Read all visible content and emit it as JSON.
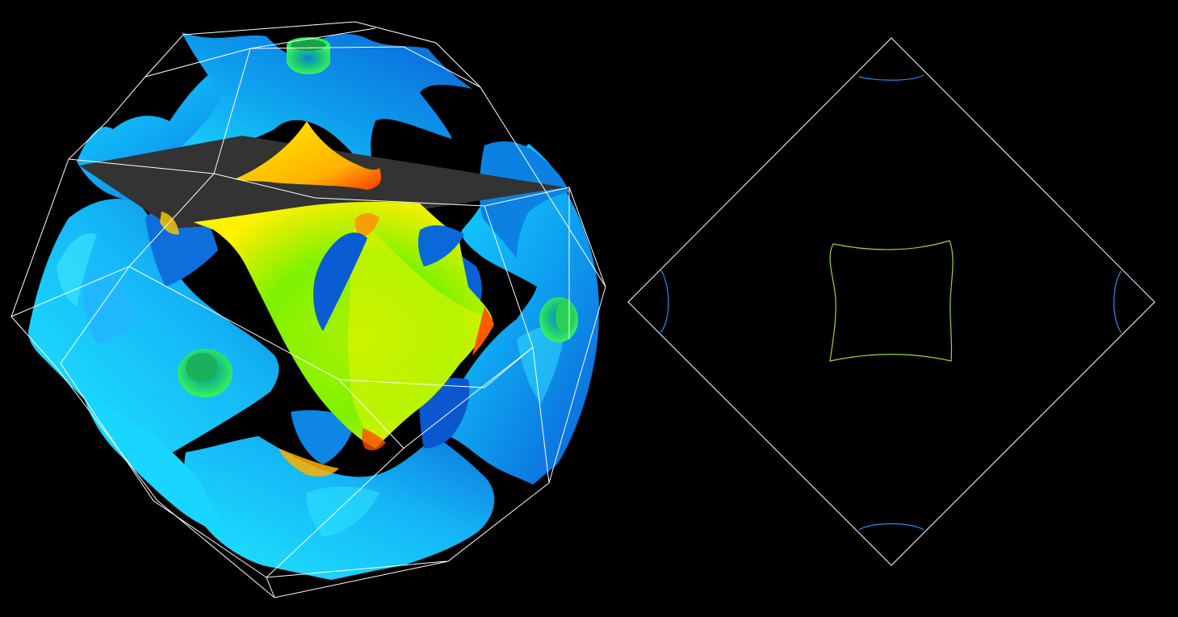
{
  "colors": {
    "background": "#000000",
    "wireframe": "#ffffff",
    "slice_plane": "#333333",
    "hole_surface_dark": "#0a5fd6",
    "hole_surface_light": "#18d8ff",
    "electron_surface_green": "#7df200",
    "electron_surface_yellow": "#fff200",
    "electron_surface_red": "#ff3a00",
    "pocket_green": "#1fd46a",
    "slice_contour_center": "#9ad63a",
    "slice_contour_corner": "#1e90e8"
  },
  "views": {
    "left": {
      "content": "3d-fermi-surface-in-brillouin-zone",
      "has_slice_plane": true
    },
    "right": {
      "content": "2d-fermi-surface-cross-section",
      "boundary_shape": "diamond"
    }
  }
}
